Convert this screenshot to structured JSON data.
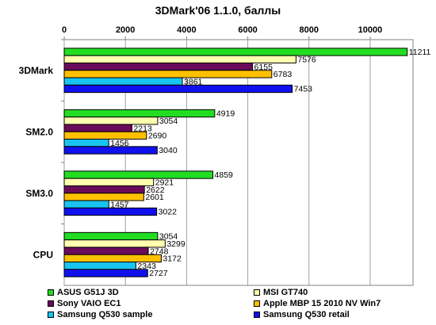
{
  "chart_data": {
    "type": "bar",
    "orientation": "horizontal",
    "title": "3DMark'06 1.1.0, баллы",
    "xlabel": "",
    "ylabel": "",
    "xlim": [
      0,
      11400
    ],
    "xticks": [
      0,
      2000,
      4000,
      6000,
      8000,
      10000
    ],
    "xtick_labels": [
      "0",
      "2000",
      "4000",
      "6000",
      "8000",
      "10000"
    ],
    "axis_position": "top",
    "grid": true,
    "legend_position": "bottom",
    "categories": [
      "3DMark",
      "SM2.0",
      "SM3.0",
      "CPU"
    ],
    "series": [
      {
        "name": "ASUS G51J 3D",
        "color": "#22dd22",
        "values": [
          11211,
          4919,
          4859,
          3054
        ]
      },
      {
        "name": "MSI GT740",
        "color": "#ffffb0",
        "values": [
          7576,
          3054,
          2921,
          3299
        ]
      },
      {
        "name": "Sony VAIO EC1",
        "color": "#6a0a5a",
        "values": [
          6155,
          2213,
          2622,
          2748
        ]
      },
      {
        "name": "Apple MBP 15 2010 NV Win7",
        "color": "#ffc000",
        "values": [
          6783,
          2690,
          2601,
          3172
        ]
      },
      {
        "name": "Samsung Q530 sample",
        "color": "#19c4f0",
        "values": [
          3861,
          1456,
          1457,
          2343
        ]
      },
      {
        "name": "Samsung Q530 retail",
        "color": "#1010ee",
        "values": [
          7453,
          3040,
          3022,
          2727
        ]
      }
    ]
  }
}
